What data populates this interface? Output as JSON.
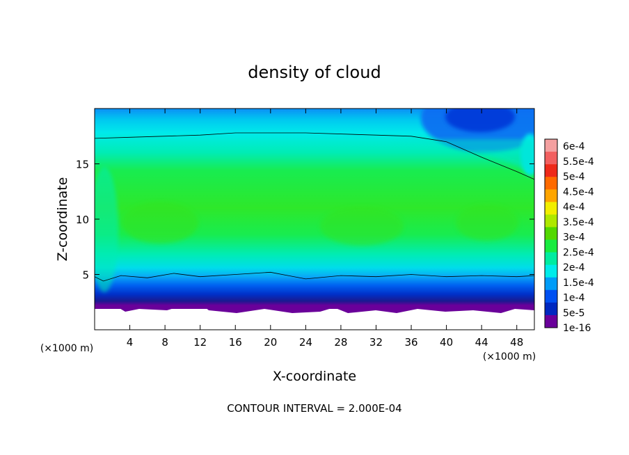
{
  "chart_data": {
    "type": "heatmap",
    "title": "density of cloud",
    "xlabel": "X-coordinate",
    "ylabel": "Z-coordinate",
    "x_unit": "(×1000 m)",
    "z_unit": "(×1000 m)",
    "xlim": [
      0,
      50
    ],
    "ylim": [
      0,
      20
    ],
    "x_ticks": [
      4,
      8,
      12,
      16,
      20,
      24,
      28,
      32,
      36,
      40,
      44,
      48
    ],
    "y_ticks": [
      5,
      10,
      15
    ],
    "footer": "CONTOUR INTERVAL = 2.000E-04",
    "colorbar": {
      "labels": [
        "6e-4",
        "5.5e-4",
        "5e-4",
        "4.5e-4",
        "4e-4",
        "3.5e-4",
        "3e-4",
        "2.5e-4",
        "2e-4",
        "1.5e-4",
        "1e-4",
        "5e-5",
        "1e-16"
      ],
      "colors": [
        "#f4a0a0",
        "#f26060",
        "#ee2a1a",
        "#ff6a00",
        "#ffa500",
        "#f2ee00",
        "#aee800",
        "#52d800",
        "#18ec40",
        "#00eca0",
        "#00ecea",
        "#009cf8",
        "#0050f2",
        "#0028c0",
        "#6a009a"
      ]
    },
    "contour_lines": [
      {
        "level": "2.000E-04",
        "points": [
          [
            0,
            17.3
          ],
          [
            4,
            17.4
          ],
          [
            12,
            17.6
          ],
          [
            16,
            17.8
          ],
          [
            24,
            17.8
          ],
          [
            32,
            17.6
          ],
          [
            36,
            17.5
          ],
          [
            40,
            17.0
          ],
          [
            44,
            15.6
          ],
          [
            48,
            14.3
          ],
          [
            50,
            13.6
          ]
        ]
      },
      {
        "level": "2.000E-04",
        "points": [
          [
            0,
            4.8
          ],
          [
            1,
            4.4
          ],
          [
            3,
            4.9
          ],
          [
            6,
            4.7
          ],
          [
            9,
            5.1
          ],
          [
            12,
            4.8
          ],
          [
            16,
            5.0
          ],
          [
            20,
            5.2
          ],
          [
            22,
            4.9
          ],
          [
            24,
            4.6
          ],
          [
            28,
            4.9
          ],
          [
            32,
            4.8
          ],
          [
            36,
            5.0
          ],
          [
            40,
            4.8
          ],
          [
            44,
            4.9
          ],
          [
            48,
            4.8
          ],
          [
            50,
            4.9
          ]
        ]
      }
    ]
  }
}
